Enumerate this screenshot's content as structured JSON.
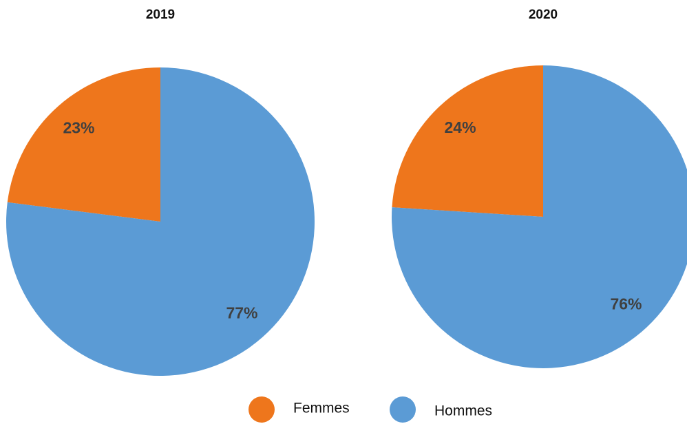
{
  "chart_data": [
    {
      "type": "pie",
      "title": "2019",
      "categories": [
        "Femmes",
        "Hommes"
      ],
      "values": [
        23,
        77
      ],
      "value_labels": [
        "23%",
        "77%"
      ],
      "colors": [
        "#ee761c",
        "#5b9bd5"
      ]
    },
    {
      "type": "pie",
      "title": "2020",
      "categories": [
        "Femmes",
        "Hommes"
      ],
      "values": [
        24,
        76
      ],
      "value_labels": [
        "24%",
        "76%"
      ],
      "colors": [
        "#ee761c",
        "#5b9bd5"
      ]
    }
  ]
}
